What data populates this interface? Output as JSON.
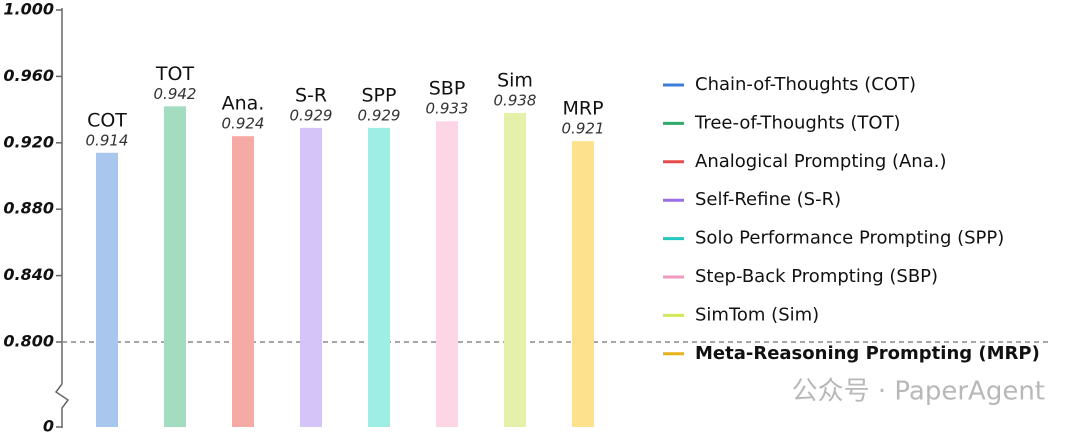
{
  "chart_data": {
    "type": "bar",
    "categories": [
      "COT",
      "TOT",
      "Ana.",
      "S-R",
      "SPP",
      "SBP",
      "Sim",
      "MRP"
    ],
    "values": [
      0.914,
      0.942,
      0.924,
      0.929,
      0.929,
      0.933,
      0.938,
      0.921
    ],
    "colors": [
      "#a8c6ee",
      "#a4dcc1",
      "#f6aaa6",
      "#d4c4f8",
      "#9eeee6",
      "#fdd6e6",
      "#e5f0aa",
      "#fde18c"
    ],
    "ylim": [
      0,
      1
    ],
    "yticks": [
      0,
      {
        "value": 0.8,
        "label": "0.800"
      },
      {
        "value": 0.84,
        "label": "0.840"
      },
      {
        "value": 0.88,
        "label": "0.880"
      },
      {
        "value": 0.92,
        "label": "0.920"
      },
      {
        "value": 0.96,
        "label": "0.960"
      },
      {
        "value": 1,
        "label": "1.000"
      }
    ],
    "broken_axis": true,
    "reference_line": 0.8,
    "legend": [
      "Chain-of-Thoughts (COT)",
      "Tree-of-Thoughts (TOT)",
      "Analogical Prompting (Ana.)",
      "Self-Refine (S-R)",
      "Solo Performance Prompting (SPP)",
      "Step-Back Prompting (SBP)",
      "SimTom (Sim)",
      "Meta-Reasoning Prompting (MRP)"
    ],
    "legend_colors": [
      "#3b7dd8",
      "#2eaa6a",
      "#e84b4b",
      "#9b6ee8",
      "#22c7c0",
      "#f09ac0",
      "#d4e857",
      "#e6b21a"
    ],
    "highlight_index": 7,
    "watermark": "公众号 · PaperAgent"
  }
}
